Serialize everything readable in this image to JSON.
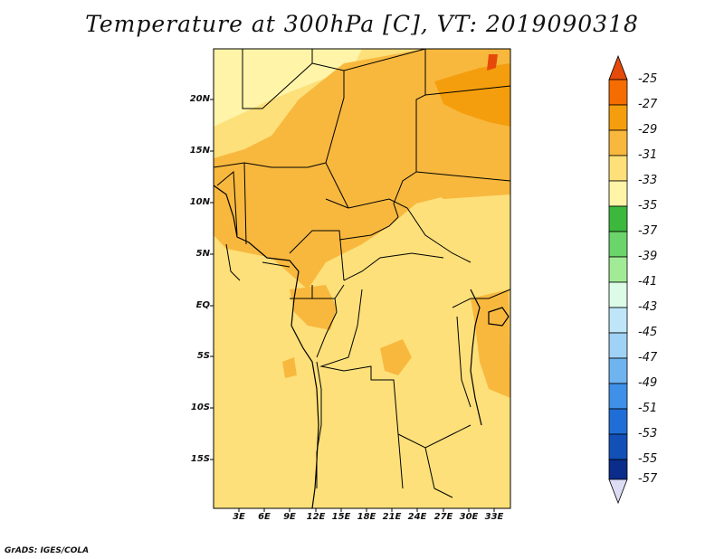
{
  "title": "Temperature at 300hPa [C], VT: 2019090318",
  "latitude_labels": [
    "20N",
    "15N",
    "10N",
    "5N",
    "EQ",
    "5S",
    "10S",
    "15S"
  ],
  "longitude_labels": [
    "3E",
    "6E",
    "9E",
    "12E",
    "15E",
    "18E",
    "21E",
    "24E",
    "27E",
    "30E",
    "33E"
  ],
  "colorbar": {
    "levels": [
      "-25",
      "-27",
      "-29",
      "-31",
      "-33",
      "-35",
      "-37",
      "-39",
      "-41",
      "-43",
      "-45",
      "-47",
      "-49",
      "-51",
      "-53",
      "-55",
      "-57"
    ],
    "colors": [
      "#e64a0a",
      "#f56c00",
      "#f59e0d",
      "#f8b83e",
      "#fde07a",
      "#fff4a8",
      "#3cb83c",
      "#6bd46b",
      "#a2eb96",
      "#dcfce8",
      "#bfe6f8",
      "#9fd2f4",
      "#6fb4ef",
      "#3f90e8",
      "#1f6ed8",
      "#1250b8",
      "#0a2c8a",
      "#08105a"
    ]
  },
  "credit": "GrADS: IGES/COLA"
}
